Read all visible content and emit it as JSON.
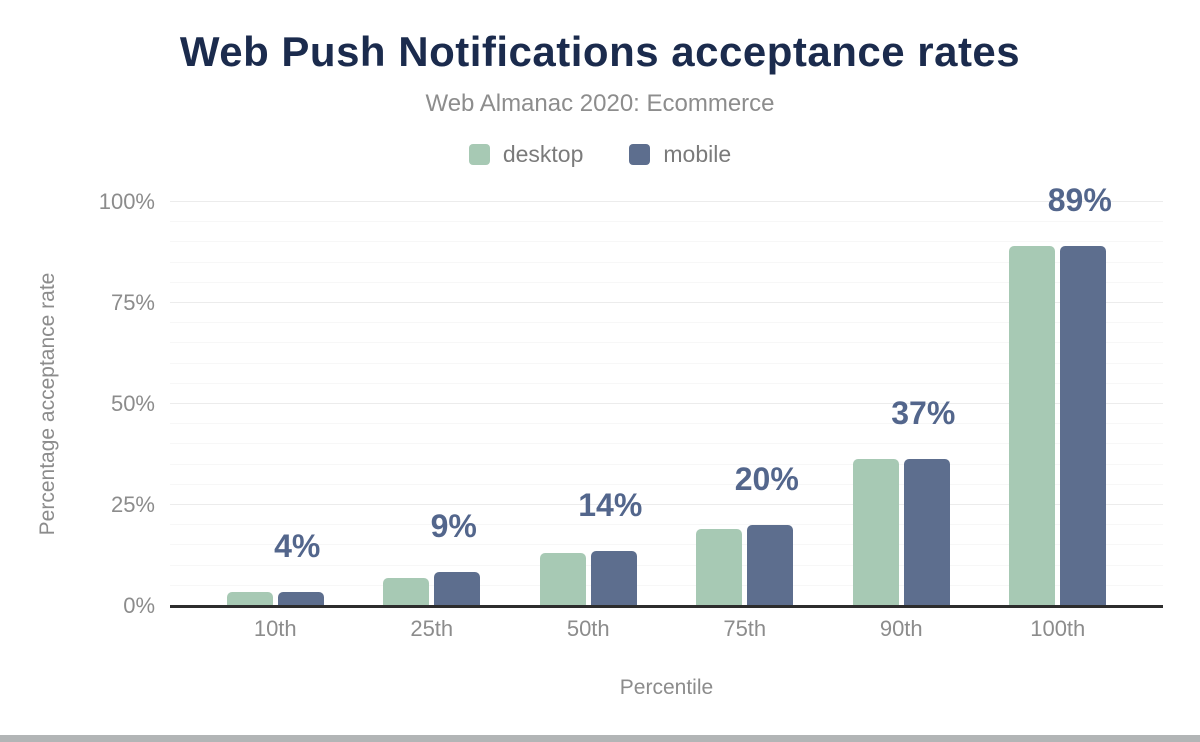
{
  "header": {
    "title": "Web Push Notifications acceptance rates",
    "subtitle": "Web Almanac 2020: Ecommerce"
  },
  "legend": {
    "items": [
      {
        "label": "desktop",
        "color": "#a7c9b4"
      },
      {
        "label": "mobile",
        "color": "#5d6e8e"
      }
    ]
  },
  "chart_data": {
    "type": "bar",
    "title": "Web Push Notifications acceptance rates",
    "subtitle": "Web Almanac 2020: Ecommerce",
    "categories": [
      "10th",
      "25th",
      "50th",
      "75th",
      "90th",
      "100th"
    ],
    "series": [
      {
        "name": "desktop",
        "color": "#a7c9b4",
        "values": [
          3.5,
          7,
          13,
          19,
          36.5,
          89
        ]
      },
      {
        "name": "mobile",
        "color": "#5d6e8e",
        "values": [
          3.5,
          8.5,
          13.5,
          20,
          36.5,
          89
        ]
      }
    ],
    "bar_labels": [
      "4%",
      "9%",
      "14%",
      "20%",
      "37%",
      "89%"
    ],
    "xlabel": "Percentile",
    "ylabel": "Percentage acceptance rate",
    "ylim": [
      0,
      100
    ],
    "y_ticks": [
      0,
      25,
      50,
      75,
      100
    ],
    "y_tick_labels": [
      "0%",
      "25%",
      "50%",
      "75%",
      "100%"
    ],
    "minor_grid_step": 5,
    "grid": true,
    "legend_position": "top",
    "value_label_color": "#53668c",
    "axis_text_color": "#8c8c8c",
    "baseline_color": "#2d2d2d"
  },
  "footer": {
    "bar_color": "#b2b5b6"
  }
}
